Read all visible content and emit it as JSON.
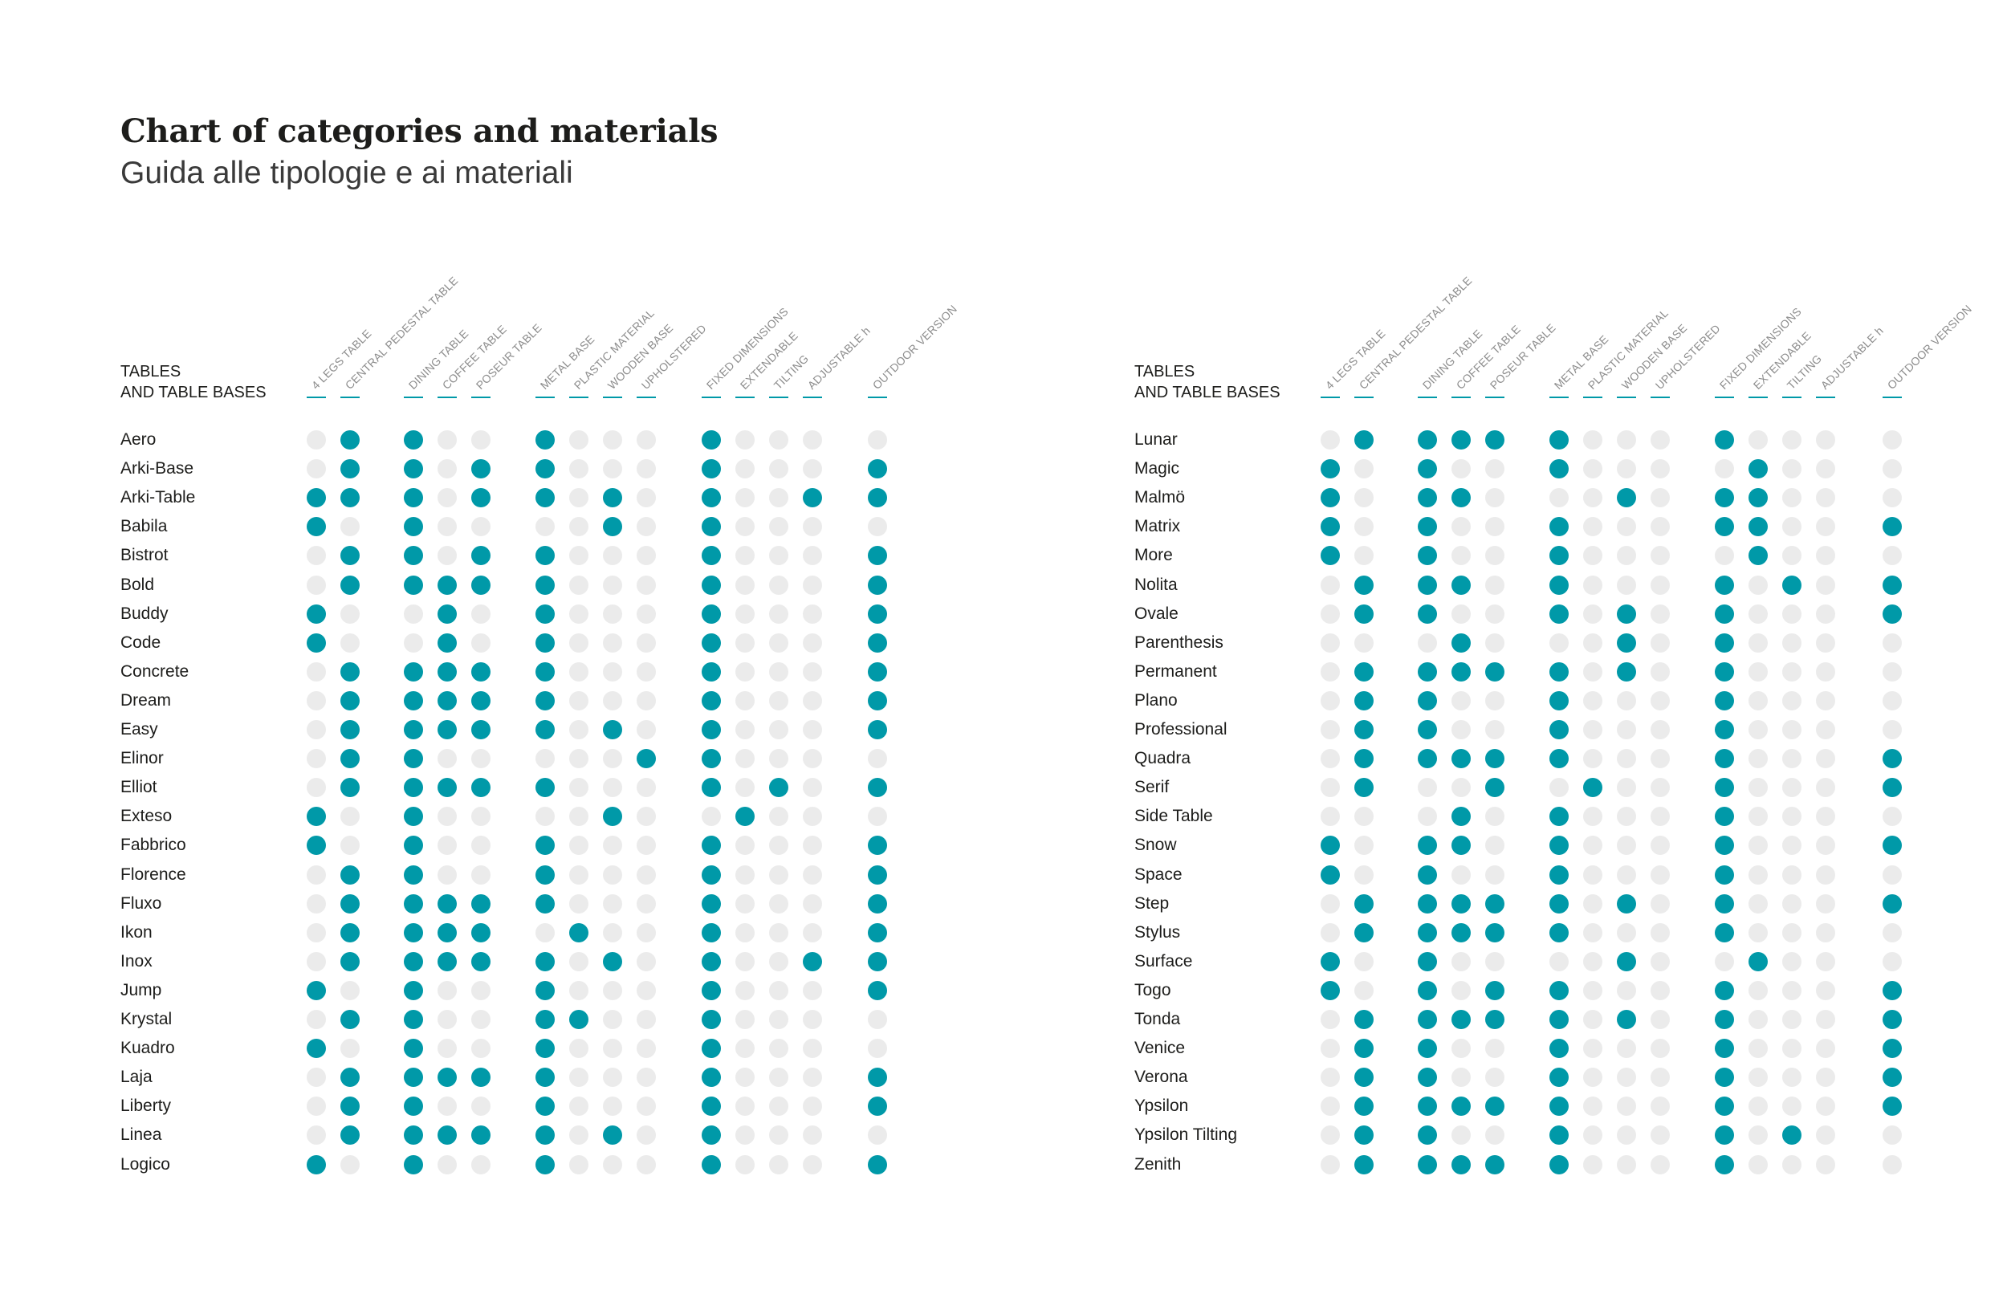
{
  "title": "Chart of categories and materials",
  "subtitle": "Guida alle tipologie e ai materiali",
  "colors": {
    "filled": "#0099a8",
    "empty": "#ebebeb",
    "tick": "#0099a8"
  },
  "chart_data": [
    {
      "type": "table",
      "row_header": [
        "TABLES",
        "AND TABLE BASES"
      ],
      "columns": [
        "4 LEGS TABLE",
        "CENTRAL PEDESTAL TABLE",
        "DINING TABLE",
        "COFFEE TABLE",
        "POSEUR TABLE",
        "METAL BASE",
        "PLASTIC MATERIAL",
        "WOODEN BASE",
        "UPHOLSTERED",
        "FIXED DIMENSIONS",
        "EXTENDABLE",
        "TILTING",
        "ADJUSTABLE h",
        "OUTDOOR VERSION"
      ],
      "rows": [
        {
          "name": "Aero",
          "values": [
            0,
            1,
            1,
            0,
            0,
            1,
            0,
            0,
            0,
            1,
            0,
            0,
            0,
            0
          ]
        },
        {
          "name": "Arki-Base",
          "values": [
            0,
            1,
            1,
            0,
            1,
            1,
            0,
            0,
            0,
            1,
            0,
            0,
            0,
            1
          ]
        },
        {
          "name": "Arki-Table",
          "values": [
            1,
            1,
            1,
            0,
            1,
            1,
            0,
            1,
            0,
            1,
            0,
            0,
            1,
            1
          ]
        },
        {
          "name": "Babila",
          "values": [
            1,
            0,
            1,
            0,
            0,
            0,
            0,
            1,
            0,
            1,
            0,
            0,
            0,
            0
          ]
        },
        {
          "name": "Bistrot",
          "values": [
            0,
            1,
            1,
            0,
            1,
            1,
            0,
            0,
            0,
            1,
            0,
            0,
            0,
            1
          ]
        },
        {
          "name": "Bold",
          "values": [
            0,
            1,
            1,
            1,
            1,
            1,
            0,
            0,
            0,
            1,
            0,
            0,
            0,
            1
          ]
        },
        {
          "name": "Buddy",
          "values": [
            1,
            0,
            0,
            1,
            0,
            1,
            0,
            0,
            0,
            1,
            0,
            0,
            0,
            1
          ]
        },
        {
          "name": "Code",
          "values": [
            1,
            0,
            0,
            1,
            0,
            1,
            0,
            0,
            0,
            1,
            0,
            0,
            0,
            1
          ]
        },
        {
          "name": "Concrete",
          "values": [
            0,
            1,
            1,
            1,
            1,
            1,
            0,
            0,
            0,
            1,
            0,
            0,
            0,
            1
          ]
        },
        {
          "name": "Dream",
          "values": [
            0,
            1,
            1,
            1,
            1,
            1,
            0,
            0,
            0,
            1,
            0,
            0,
            0,
            1
          ]
        },
        {
          "name": "Easy",
          "values": [
            0,
            1,
            1,
            1,
            1,
            1,
            0,
            1,
            0,
            1,
            0,
            0,
            0,
            1
          ]
        },
        {
          "name": "Elinor",
          "values": [
            0,
            1,
            1,
            0,
            0,
            0,
            0,
            0,
            1,
            1,
            0,
            0,
            0,
            0
          ]
        },
        {
          "name": "Elliot",
          "values": [
            0,
            1,
            1,
            1,
            1,
            1,
            0,
            0,
            0,
            1,
            0,
            1,
            0,
            1
          ]
        },
        {
          "name": "Exteso",
          "values": [
            1,
            0,
            1,
            0,
            0,
            0,
            0,
            1,
            0,
            0,
            1,
            0,
            0,
            0
          ]
        },
        {
          "name": "Fabbrico",
          "values": [
            1,
            0,
            1,
            0,
            0,
            1,
            0,
            0,
            0,
            1,
            0,
            0,
            0,
            1
          ]
        },
        {
          "name": "Florence",
          "values": [
            0,
            1,
            1,
            0,
            0,
            1,
            0,
            0,
            0,
            1,
            0,
            0,
            0,
            1
          ]
        },
        {
          "name": "Fluxo",
          "values": [
            0,
            1,
            1,
            1,
            1,
            1,
            0,
            0,
            0,
            1,
            0,
            0,
            0,
            1
          ]
        },
        {
          "name": "Ikon",
          "values": [
            0,
            1,
            1,
            1,
            1,
            0,
            1,
            0,
            0,
            1,
            0,
            0,
            0,
            1
          ]
        },
        {
          "name": "Inox",
          "values": [
            0,
            1,
            1,
            1,
            1,
            1,
            0,
            1,
            0,
            1,
            0,
            0,
            1,
            1
          ]
        },
        {
          "name": "Jump",
          "values": [
            1,
            0,
            1,
            0,
            0,
            1,
            0,
            0,
            0,
            1,
            0,
            0,
            0,
            1
          ]
        },
        {
          "name": "Krystal",
          "values": [
            0,
            1,
            1,
            0,
            0,
            1,
            1,
            0,
            0,
            1,
            0,
            0,
            0,
            0
          ]
        },
        {
          "name": "Kuadro",
          "values": [
            1,
            0,
            1,
            0,
            0,
            1,
            0,
            0,
            0,
            1,
            0,
            0,
            0,
            0
          ]
        },
        {
          "name": "Laja",
          "values": [
            0,
            1,
            1,
            1,
            1,
            1,
            0,
            0,
            0,
            1,
            0,
            0,
            0,
            1
          ]
        },
        {
          "name": "Liberty",
          "values": [
            0,
            1,
            1,
            0,
            0,
            1,
            0,
            0,
            0,
            1,
            0,
            0,
            0,
            1
          ]
        },
        {
          "name": "Linea",
          "values": [
            0,
            1,
            1,
            1,
            1,
            1,
            0,
            1,
            0,
            1,
            0,
            0,
            0,
            0
          ]
        },
        {
          "name": "Logico",
          "values": [
            1,
            0,
            1,
            0,
            0,
            1,
            0,
            0,
            0,
            1,
            0,
            0,
            0,
            1
          ]
        }
      ]
    },
    {
      "type": "table",
      "row_header": [
        "TABLES",
        "AND TABLE BASES"
      ],
      "columns": [
        "4 LEGS TABLE",
        "CENTRAL PEDESTAL TABLE",
        "DINING TABLE",
        "COFFEE TABLE",
        "POSEUR TABLE",
        "METAL BASE",
        "PLASTIC MATERIAL",
        "WOODEN BASE",
        "UPHOLSTERED",
        "FIXED DIMENSIONS",
        "EXTENDABLE",
        "TILTING",
        "ADJUSTABLE h",
        "OUTDOOR VERSION"
      ],
      "rows": [
        {
          "name": "Lunar",
          "values": [
            0,
            1,
            1,
            1,
            1,
            1,
            0,
            0,
            0,
            1,
            0,
            0,
            0,
            0
          ]
        },
        {
          "name": "Magic",
          "values": [
            1,
            0,
            1,
            0,
            0,
            1,
            0,
            0,
            0,
            0,
            1,
            0,
            0,
            0
          ]
        },
        {
          "name": "Malmö",
          "values": [
            1,
            0,
            1,
            1,
            0,
            0,
            0,
            1,
            0,
            1,
            1,
            0,
            0,
            0
          ]
        },
        {
          "name": "Matrix",
          "values": [
            1,
            0,
            1,
            0,
            0,
            1,
            0,
            0,
            0,
            1,
            1,
            0,
            0,
            1
          ]
        },
        {
          "name": "More",
          "values": [
            1,
            0,
            1,
            0,
            0,
            1,
            0,
            0,
            0,
            0,
            1,
            0,
            0,
            0
          ]
        },
        {
          "name": "Nolita",
          "values": [
            0,
            1,
            1,
            1,
            0,
            1,
            0,
            0,
            0,
            1,
            0,
            1,
            0,
            1
          ]
        },
        {
          "name": "Ovale",
          "values": [
            0,
            1,
            1,
            0,
            0,
            1,
            0,
            1,
            0,
            1,
            0,
            0,
            0,
            1
          ]
        },
        {
          "name": "Parenthesis",
          "values": [
            0,
            0,
            0,
            1,
            0,
            0,
            0,
            1,
            0,
            1,
            0,
            0,
            0,
            0
          ]
        },
        {
          "name": "Permanent",
          "values": [
            0,
            1,
            1,
            1,
            1,
            1,
            0,
            1,
            0,
            1,
            0,
            0,
            0,
            0
          ]
        },
        {
          "name": "Plano",
          "values": [
            0,
            1,
            1,
            0,
            0,
            1,
            0,
            0,
            0,
            1,
            0,
            0,
            0,
            0
          ]
        },
        {
          "name": "Professional",
          "values": [
            0,
            1,
            1,
            0,
            0,
            1,
            0,
            0,
            0,
            1,
            0,
            0,
            0,
            0
          ]
        },
        {
          "name": "Quadra",
          "values": [
            0,
            1,
            1,
            1,
            1,
            1,
            0,
            0,
            0,
            1,
            0,
            0,
            0,
            1
          ]
        },
        {
          "name": "Serif",
          "values": [
            0,
            1,
            0,
            0,
            1,
            0,
            1,
            0,
            0,
            1,
            0,
            0,
            0,
            1
          ]
        },
        {
          "name": "Side Table",
          "values": [
            0,
            0,
            0,
            1,
            0,
            1,
            0,
            0,
            0,
            1,
            0,
            0,
            0,
            0
          ]
        },
        {
          "name": "Snow",
          "values": [
            1,
            0,
            1,
            1,
            0,
            1,
            0,
            0,
            0,
            1,
            0,
            0,
            0,
            1
          ]
        },
        {
          "name": "Space",
          "values": [
            1,
            0,
            1,
            0,
            0,
            1,
            0,
            0,
            0,
            1,
            0,
            0,
            0,
            0
          ]
        },
        {
          "name": "Step",
          "values": [
            0,
            1,
            1,
            1,
            1,
            1,
            0,
            1,
            0,
            1,
            0,
            0,
            0,
            1
          ]
        },
        {
          "name": "Stylus",
          "values": [
            0,
            1,
            1,
            1,
            1,
            1,
            0,
            0,
            0,
            1,
            0,
            0,
            0,
            0
          ]
        },
        {
          "name": "Surface",
          "values": [
            1,
            0,
            1,
            0,
            0,
            0,
            0,
            1,
            0,
            0,
            1,
            0,
            0,
            0
          ]
        },
        {
          "name": "Togo",
          "values": [
            1,
            0,
            1,
            0,
            1,
            1,
            0,
            0,
            0,
            1,
            0,
            0,
            0,
            1
          ]
        },
        {
          "name": "Tonda",
          "values": [
            0,
            1,
            1,
            1,
            1,
            1,
            0,
            1,
            0,
            1,
            0,
            0,
            0,
            1
          ]
        },
        {
          "name": "Venice",
          "values": [
            0,
            1,
            1,
            0,
            0,
            1,
            0,
            0,
            0,
            1,
            0,
            0,
            0,
            1
          ]
        },
        {
          "name": "Verona",
          "values": [
            0,
            1,
            1,
            0,
            0,
            1,
            0,
            0,
            0,
            1,
            0,
            0,
            0,
            1
          ]
        },
        {
          "name": "Ypsilon",
          "values": [
            0,
            1,
            1,
            1,
            1,
            1,
            0,
            0,
            0,
            1,
            0,
            0,
            0,
            1
          ]
        },
        {
          "name": "Ypsilon Tilting",
          "values": [
            0,
            1,
            1,
            0,
            0,
            1,
            0,
            0,
            0,
            1,
            0,
            1,
            0,
            0
          ]
        },
        {
          "name": "Zenith",
          "values": [
            0,
            1,
            1,
            1,
            1,
            1,
            0,
            0,
            0,
            1,
            0,
            0,
            0,
            0
          ]
        }
      ]
    }
  ]
}
